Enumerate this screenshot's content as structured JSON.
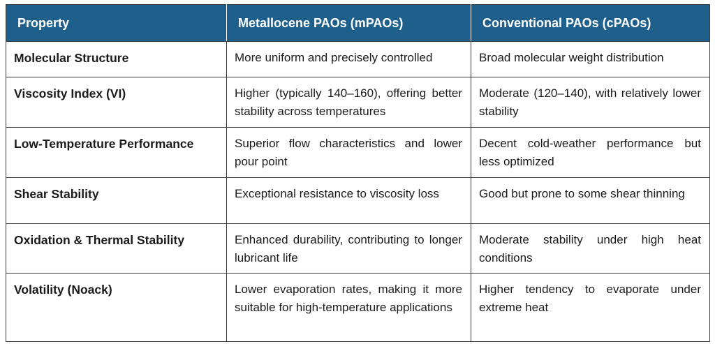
{
  "table": {
    "headers": [
      "Property",
      "Metallocene PAOs (mPAOs)",
      "Conventional PAOs (cPAOs)"
    ],
    "rows": [
      {
        "property": "Molecular Structure",
        "mpao": "More uniform and precisely controlled",
        "cpao": "Broad molecular weight distribution"
      },
      {
        "property": "Viscosity Index (VI)",
        "mpao": "Higher (typically 140–160), offering better stability across temperatures",
        "cpao": "Moderate (120–140), with relatively lower stability"
      },
      {
        "property": "Low-Temperature Performance",
        "mpao": "Superior flow characteristics and lower pour point",
        "cpao": "Decent cold-weather performance but less optimized"
      },
      {
        "property": "Shear Stability",
        "mpao": "Exceptional resistance to viscosity loss",
        "cpao": "Good but prone to some shear thinning"
      },
      {
        "property": "Oxidation & Thermal Stability",
        "mpao": "Enhanced durability, contributing to longer lubricant life",
        "cpao": "Moderate stability under high heat conditions"
      },
      {
        "property": "Volatility (Noack)",
        "mpao": "Lower evaporation rates, making it more suitable for high-temperature applications",
        "cpao": "Higher tendency to evaporate under extreme heat"
      }
    ]
  },
  "colors": {
    "header_background": "#1f5f8b",
    "header_text": "#ffffff",
    "border": "#3a3a3a"
  }
}
